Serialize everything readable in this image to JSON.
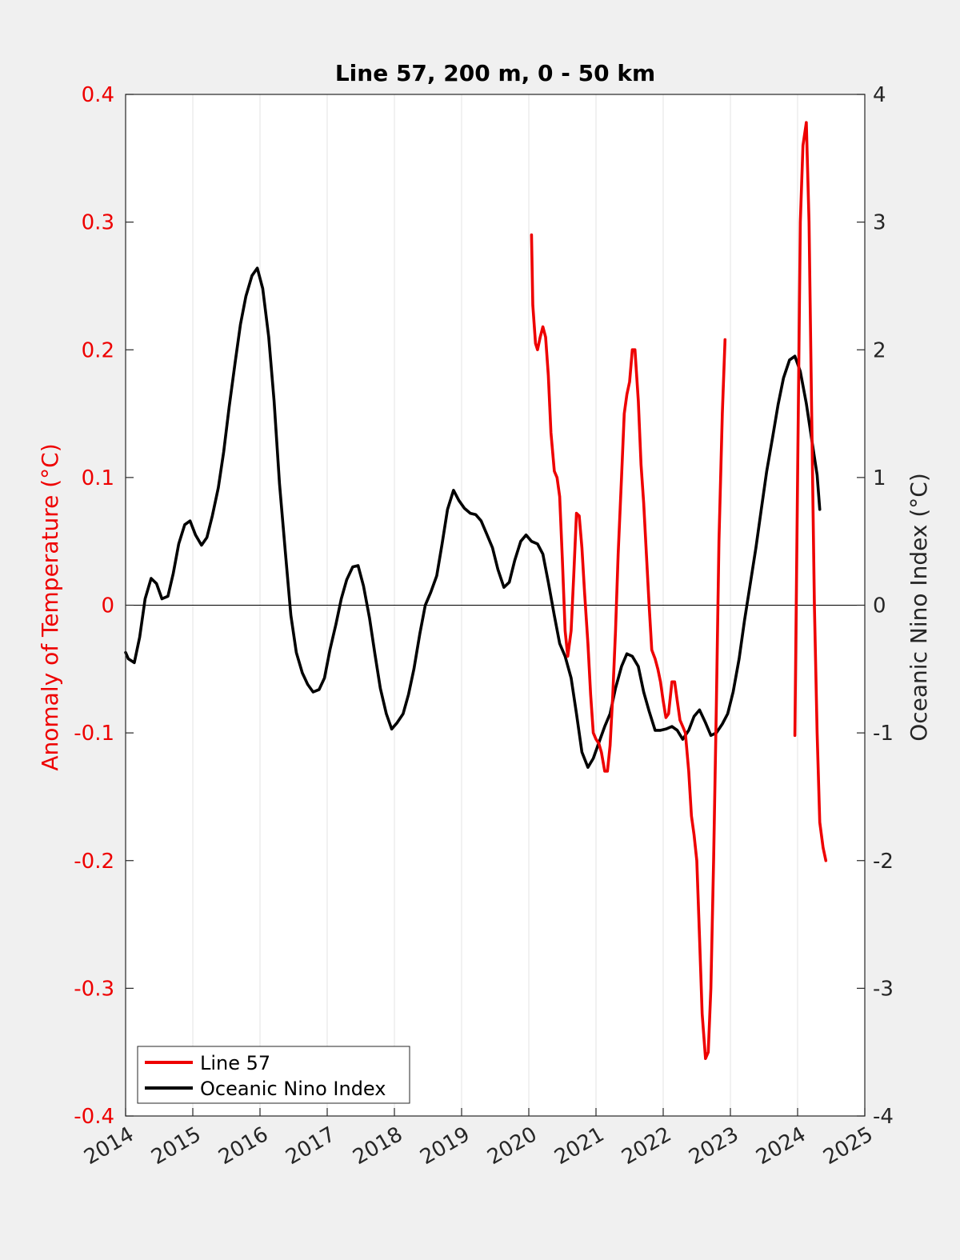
{
  "chart_data": {
    "type": "line",
    "title": "Line 57, 200 m, 0 - 50 km",
    "xlim": [
      2014,
      2025
    ],
    "x_ticks": [
      "2014",
      "2015",
      "2016",
      "2017",
      "2018",
      "2019",
      "2020",
      "2021",
      "2022",
      "2023",
      "2024",
      "2025"
    ],
    "left_axis": {
      "label": "Anomaly of Temperature (°C)",
      "ylim": [
        -0.4,
        0.4
      ],
      "ticks": [
        "-0.4",
        "-0.3",
        "-0.2",
        "-0.1",
        "0",
        "0.1",
        "0.2",
        "0.3",
        "0.4"
      ],
      "color": "#ee0000"
    },
    "right_axis": {
      "label": "Oceanic Nino Index (°C)",
      "ylim": [
        -4,
        4
      ],
      "ticks": [
        "-4",
        "-3",
        "-2",
        "-1",
        "0",
        "1",
        "2",
        "3",
        "4"
      ],
      "color": "#000000"
    },
    "grid": "vertical lines at x ticks",
    "zero_line": true,
    "legend_position": "bottom-left",
    "series": [
      {
        "name": "Line 57",
        "axis": "left",
        "color": "#ee0000",
        "segments": [
          [
            [
              2020.04,
              0.29
            ],
            [
              2020.06,
              0.235
            ],
            [
              2020.1,
              0.205
            ],
            [
              2020.13,
              0.2
            ],
            [
              2020.17,
              0.21
            ],
            [
              2020.21,
              0.218
            ],
            [
              2020.25,
              0.21
            ],
            [
              2020.29,
              0.18
            ],
            [
              2020.33,
              0.135
            ],
            [
              2020.38,
              0.105
            ],
            [
              2020.42,
              0.1
            ],
            [
              2020.46,
              0.085
            ],
            [
              2020.5,
              0.035
            ],
            [
              2020.54,
              -0.02
            ],
            [
              2020.58,
              -0.04
            ],
            [
              2020.63,
              -0.02
            ],
            [
              2020.67,
              0.025
            ],
            [
              2020.71,
              0.072
            ],
            [
              2020.75,
              0.07
            ],
            [
              2020.79,
              0.045
            ],
            [
              2020.83,
              0.01
            ],
            [
              2020.88,
              -0.03
            ],
            [
              2020.92,
              -0.07
            ],
            [
              2020.96,
              -0.1
            ],
            [
              2021.0,
              -0.105
            ],
            [
              2021.04,
              -0.108
            ],
            [
              2021.08,
              -0.115
            ],
            [
              2021.13,
              -0.13
            ],
            [
              2021.17,
              -0.13
            ],
            [
              2021.21,
              -0.11
            ],
            [
              2021.25,
              -0.07
            ],
            [
              2021.29,
              -0.02
            ],
            [
              2021.33,
              0.04
            ],
            [
              2021.38,
              0.1
            ],
            [
              2021.42,
              0.15
            ],
            [
              2021.46,
              0.165
            ],
            [
              2021.5,
              0.175
            ],
            [
              2021.54,
              0.2
            ],
            [
              2021.58,
              0.2
            ],
            [
              2021.63,
              0.16
            ],
            [
              2021.67,
              0.11
            ],
            [
              2021.71,
              0.08
            ],
            [
              2021.75,
              0.04
            ],
            [
              2021.79,
              0.0
            ],
            [
              2021.83,
              -0.035
            ],
            [
              2021.88,
              -0.042
            ],
            [
              2021.92,
              -0.05
            ],
            [
              2021.96,
              -0.06
            ],
            [
              2022.0,
              -0.075
            ],
            [
              2022.04,
              -0.088
            ],
            [
              2022.08,
              -0.085
            ],
            [
              2022.13,
              -0.06
            ],
            [
              2022.17,
              -0.06
            ],
            [
              2022.21,
              -0.075
            ],
            [
              2022.25,
              -0.09
            ],
            [
              2022.29,
              -0.095
            ],
            [
              2022.33,
              -0.1
            ],
            [
              2022.38,
              -0.13
            ],
            [
              2022.42,
              -0.165
            ],
            [
              2022.46,
              -0.18
            ],
            [
              2022.5,
              -0.2
            ],
            [
              2022.54,
              -0.26
            ],
            [
              2022.58,
              -0.32
            ],
            [
              2022.63,
              -0.355
            ],
            [
              2022.67,
              -0.35
            ],
            [
              2022.71,
              -0.3
            ],
            [
              2022.75,
              -0.2
            ],
            [
              2022.79,
              -0.08
            ],
            [
              2022.83,
              0.05
            ],
            [
              2022.88,
              0.15
            ],
            [
              2022.92,
              0.208
            ]
          ],
          [
            [
              2023.96,
              -0.102
            ],
            [
              2023.98,
              0.0
            ],
            [
              2024.0,
              0.1
            ],
            [
              2024.04,
              0.3
            ],
            [
              2024.08,
              0.36
            ],
            [
              2024.13,
              0.378
            ],
            [
              2024.17,
              0.3
            ],
            [
              2024.21,
              0.15
            ],
            [
              2024.25,
              0.0
            ],
            [
              2024.29,
              -0.1
            ],
            [
              2024.33,
              -0.17
            ],
            [
              2024.38,
              -0.19
            ],
            [
              2024.42,
              -0.2
            ]
          ]
        ]
      },
      {
        "name": "Oceanic Nino Index",
        "axis": "right",
        "color": "#000000",
        "segments": [
          [
            [
              2014.0,
              -0.37
            ],
            [
              2014.04,
              -0.42
            ],
            [
              2014.13,
              -0.45
            ],
            [
              2014.21,
              -0.25
            ],
            [
              2014.29,
              0.05
            ],
            [
              2014.38,
              0.21
            ],
            [
              2014.46,
              0.17
            ],
            [
              2014.54,
              0.05
            ],
            [
              2014.63,
              0.07
            ],
            [
              2014.71,
              0.25
            ],
            [
              2014.79,
              0.48
            ],
            [
              2014.88,
              0.63
            ],
            [
              2014.96,
              0.66
            ],
            [
              2015.04,
              0.55
            ],
            [
              2015.13,
              0.47
            ],
            [
              2015.21,
              0.53
            ],
            [
              2015.29,
              0.7
            ],
            [
              2015.38,
              0.92
            ],
            [
              2015.46,
              1.2
            ],
            [
              2015.54,
              1.55
            ],
            [
              2015.63,
              1.9
            ],
            [
              2015.71,
              2.2
            ],
            [
              2015.79,
              2.42
            ],
            [
              2015.88,
              2.58
            ],
            [
              2015.96,
              2.64
            ],
            [
              2016.04,
              2.48
            ],
            [
              2016.13,
              2.1
            ],
            [
              2016.21,
              1.6
            ],
            [
              2016.29,
              0.95
            ],
            [
              2016.38,
              0.4
            ],
            [
              2016.46,
              -0.08
            ],
            [
              2016.54,
              -0.37
            ],
            [
              2016.63,
              -0.53
            ],
            [
              2016.71,
              -0.62
            ],
            [
              2016.79,
              -0.68
            ],
            [
              2016.88,
              -0.66
            ],
            [
              2016.96,
              -0.57
            ],
            [
              2017.04,
              -0.35
            ],
            [
              2017.13,
              -0.15
            ],
            [
              2017.21,
              0.05
            ],
            [
              2017.29,
              0.2
            ],
            [
              2017.38,
              0.3
            ],
            [
              2017.46,
              0.31
            ],
            [
              2017.54,
              0.15
            ],
            [
              2017.63,
              -0.1
            ],
            [
              2017.71,
              -0.38
            ],
            [
              2017.79,
              -0.65
            ],
            [
              2017.88,
              -0.85
            ],
            [
              2017.96,
              -0.97
            ],
            [
              2018.04,
              -0.92
            ],
            [
              2018.13,
              -0.85
            ],
            [
              2018.21,
              -0.7
            ],
            [
              2018.29,
              -0.5
            ],
            [
              2018.38,
              -0.22
            ],
            [
              2018.46,
              0.0
            ],
            [
              2018.54,
              0.1
            ],
            [
              2018.63,
              0.23
            ],
            [
              2018.71,
              0.48
            ],
            [
              2018.79,
              0.75
            ],
            [
              2018.88,
              0.9
            ],
            [
              2018.96,
              0.82
            ],
            [
              2019.04,
              0.76
            ],
            [
              2019.13,
              0.72
            ],
            [
              2019.21,
              0.71
            ],
            [
              2019.29,
              0.66
            ],
            [
              2019.38,
              0.55
            ],
            [
              2019.46,
              0.45
            ],
            [
              2019.54,
              0.28
            ],
            [
              2019.63,
              0.14
            ],
            [
              2019.71,
              0.18
            ],
            [
              2019.79,
              0.35
            ],
            [
              2019.88,
              0.5
            ],
            [
              2019.96,
              0.55
            ],
            [
              2020.04,
              0.5
            ],
            [
              2020.13,
              0.48
            ],
            [
              2020.21,
              0.4
            ],
            [
              2020.29,
              0.18
            ],
            [
              2020.38,
              -0.08
            ],
            [
              2020.46,
              -0.3
            ],
            [
              2020.54,
              -0.4
            ],
            [
              2020.63,
              -0.57
            ],
            [
              2020.71,
              -0.85
            ],
            [
              2020.79,
              -1.15
            ],
            [
              2020.88,
              -1.27
            ],
            [
              2020.96,
              -1.2
            ],
            [
              2021.04,
              -1.08
            ],
            [
              2021.13,
              -0.95
            ],
            [
              2021.21,
              -0.85
            ],
            [
              2021.29,
              -0.65
            ],
            [
              2021.38,
              -0.48
            ],
            [
              2021.46,
              -0.38
            ],
            [
              2021.54,
              -0.4
            ],
            [
              2021.63,
              -0.48
            ],
            [
              2021.71,
              -0.68
            ],
            [
              2021.79,
              -0.83
            ],
            [
              2021.88,
              -0.98
            ],
            [
              2021.96,
              -0.98
            ],
            [
              2022.04,
              -0.97
            ],
            [
              2022.13,
              -0.95
            ],
            [
              2022.21,
              -0.98
            ],
            [
              2022.29,
              -1.05
            ],
            [
              2022.38,
              -0.98
            ],
            [
              2022.46,
              -0.87
            ],
            [
              2022.54,
              -0.82
            ],
            [
              2022.63,
              -0.92
            ],
            [
              2022.71,
              -1.02
            ],
            [
              2022.79,
              -1.0
            ],
            [
              2022.88,
              -0.93
            ],
            [
              2022.96,
              -0.85
            ],
            [
              2023.04,
              -0.68
            ],
            [
              2023.13,
              -0.42
            ],
            [
              2023.21,
              -0.12
            ],
            [
              2023.29,
              0.15
            ],
            [
              2023.38,
              0.45
            ],
            [
              2023.46,
              0.75
            ],
            [
              2023.54,
              1.05
            ],
            [
              2023.63,
              1.32
            ],
            [
              2023.71,
              1.57
            ],
            [
              2023.79,
              1.78
            ],
            [
              2023.88,
              1.92
            ],
            [
              2023.96,
              1.95
            ],
            [
              2024.04,
              1.83
            ],
            [
              2024.13,
              1.58
            ],
            [
              2024.21,
              1.3
            ],
            [
              2024.29,
              1.02
            ],
            [
              2024.33,
              0.75
            ]
          ]
        ]
      }
    ]
  }
}
